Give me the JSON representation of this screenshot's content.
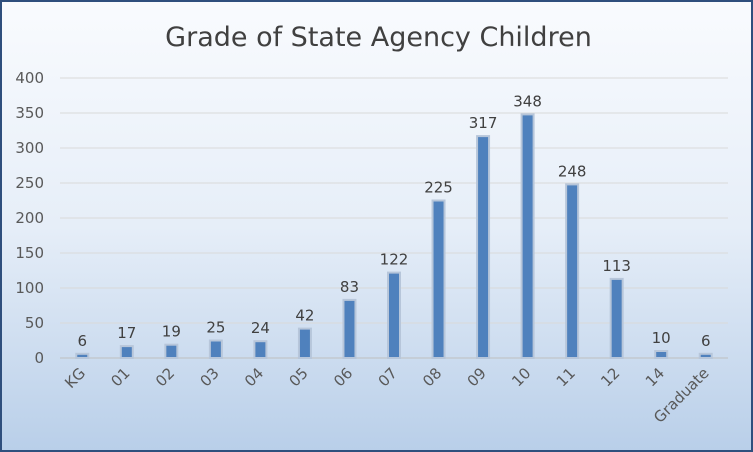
{
  "chart_data": {
    "type": "bar",
    "title": "Grade of State Agency Children",
    "categories": [
      "KG",
      "01",
      "02",
      "03",
      "04",
      "05",
      "06",
      "07",
      "08",
      "09",
      "10",
      "11",
      "12",
      "14",
      "Graduate"
    ],
    "values": [
      6,
      17,
      19,
      25,
      24,
      42,
      83,
      122,
      225,
      317,
      348,
      248,
      113,
      10,
      6
    ],
    "ylim": [
      0,
      400
    ],
    "yticks": [
      0,
      50,
      100,
      150,
      200,
      250,
      300,
      350,
      400
    ],
    "grid": true,
    "legend": "none",
    "bar_color": "#4f81bd",
    "bar_edge_color": "#b7c6da"
  }
}
